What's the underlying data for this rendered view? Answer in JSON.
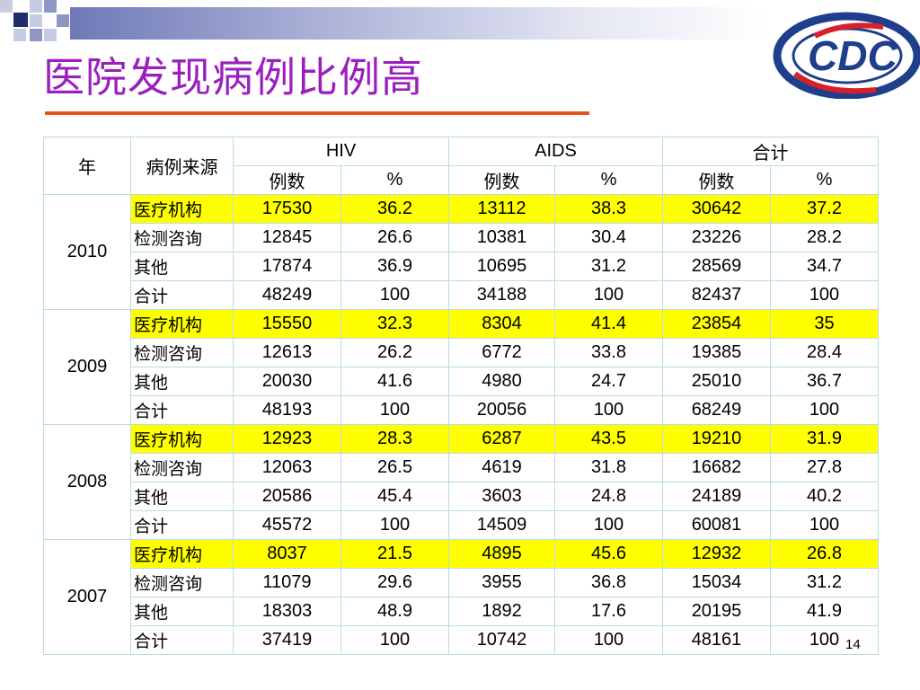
{
  "title": "医院发现病例比例高",
  "logo_text": "CDC",
  "page_number": "14",
  "colors": {
    "title": "#9b1fbf",
    "rule": "#e8501f",
    "highlight": "#ffff00",
    "border": "#b7dce0"
  },
  "table": {
    "headers": {
      "year": "年",
      "source": "病例来源",
      "groups": [
        "HIV",
        "AIDS",
        "合计"
      ],
      "sub": [
        "例数",
        "%",
        "例数",
        "%",
        "例数",
        "%"
      ]
    },
    "years": [
      {
        "year": "2010",
        "rows": [
          {
            "source": "医疗机构",
            "values": [
              "17530",
              "36.2",
              "13112",
              "38.3",
              "30642",
              "37.2"
            ]
          },
          {
            "source": "检测咨询",
            "values": [
              "12845",
              "26.6",
              "10381",
              "30.4",
              "23226",
              "28.2"
            ]
          },
          {
            "source": "其他",
            "values": [
              "17874",
              "36.9",
              "10695",
              "31.2",
              "28569",
              "34.7"
            ]
          },
          {
            "source": "合计",
            "values": [
              "48249",
              "100",
              "34188",
              "100",
              "82437",
              "100"
            ]
          }
        ]
      },
      {
        "year": "2009",
        "rows": [
          {
            "source": "医疗机构",
            "values": [
              "15550",
              "32.3",
              "8304",
              "41.4",
              "23854",
              "35"
            ]
          },
          {
            "source": "检测咨询",
            "values": [
              "12613",
              "26.2",
              "6772",
              "33.8",
              "19385",
              "28.4"
            ]
          },
          {
            "source": "其他",
            "values": [
              "20030",
              "41.6",
              "4980",
              "24.7",
              "25010",
              "36.7"
            ]
          },
          {
            "source": "合计",
            "values": [
              "48193",
              "100",
              "20056",
              "100",
              "68249",
              "100"
            ]
          }
        ]
      },
      {
        "year": "2008",
        "rows": [
          {
            "source": "医疗机构",
            "values": [
              "12923",
              "28.3",
              "6287",
              "43.5",
              "19210",
              "31.9"
            ]
          },
          {
            "source": "检测咨询",
            "values": [
              "12063",
              "26.5",
              "4619",
              "31.8",
              "16682",
              "27.8"
            ]
          },
          {
            "source": "其他",
            "values": [
              "20586",
              "45.4",
              "3603",
              "24.8",
              "24189",
              "40.2"
            ]
          },
          {
            "source": "合计",
            "values": [
              "45572",
              "100",
              "14509",
              "100",
              "60081",
              "100"
            ]
          }
        ]
      },
      {
        "year": "2007",
        "rows": [
          {
            "source": "医疗机构",
            "values": [
              "8037",
              "21.5",
              "4895",
              "45.6",
              "12932",
              "26.8"
            ]
          },
          {
            "source": "检测咨询",
            "values": [
              "11079",
              "29.6",
              "3955",
              "36.8",
              "15034",
              "31.2"
            ]
          },
          {
            "source": "其他",
            "values": [
              "18303",
              "48.9",
              "1892",
              "17.6",
              "20195",
              "41.9"
            ]
          },
          {
            "source": "合计",
            "values": [
              "37419",
              "100",
              "10742",
              "100",
              "48161",
              "100"
            ]
          }
        ]
      }
    ]
  }
}
